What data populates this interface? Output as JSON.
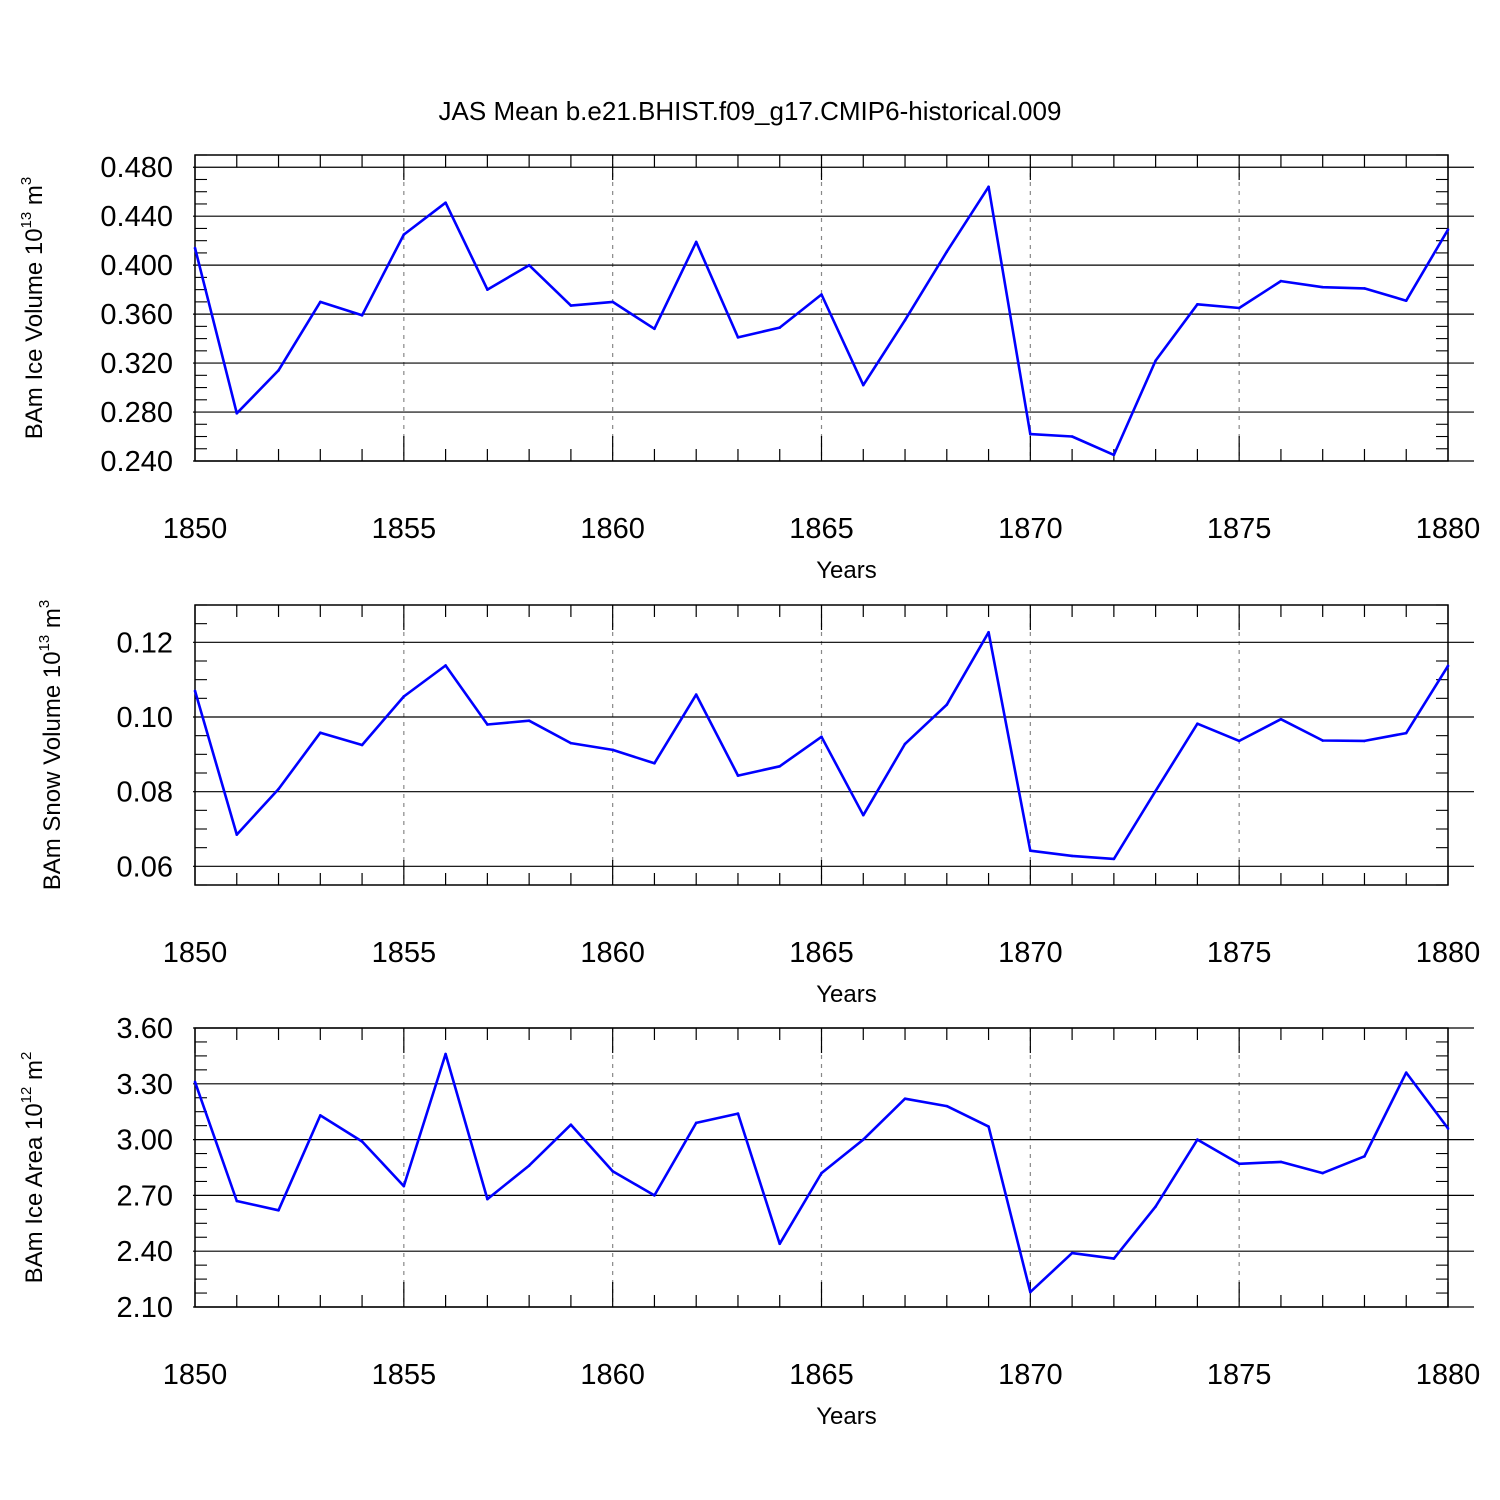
{
  "figure": {
    "title": "JAS Mean b.e21.BHIST.f09_g17.CMIP6-historical.009",
    "line_color": "#0000ff",
    "grid_color": "#888888"
  },
  "chart_data": [
    {
      "type": "line",
      "ylabel": {
        "main": "BAm Ice Volume 10",
        "sup": "13",
        "unit": " m",
        "unit_sup": "3"
      },
      "xlabel": "Years",
      "xlim": [
        1850,
        1880
      ],
      "ylim": [
        0.24,
        0.49
      ],
      "xticks": [
        1850,
        1855,
        1860,
        1865,
        1870,
        1875,
        1880
      ],
      "xtick_labels": [
        "1850",
        "1855",
        "1860",
        "1865",
        "1870",
        "1875",
        "1880"
      ],
      "yticks": [
        0.24,
        0.28,
        0.32,
        0.36,
        0.4,
        0.44,
        0.48
      ],
      "ytick_labels": [
        "0.240",
        "0.280",
        "0.320",
        "0.360",
        "0.400",
        "0.440",
        "0.480"
      ],
      "ygrid": true,
      "xgrid": "dashed",
      "x": [
        1850,
        1851,
        1852,
        1853,
        1854,
        1855,
        1856,
        1857,
        1858,
        1859,
        1860,
        1861,
        1862,
        1863,
        1864,
        1865,
        1866,
        1867,
        1868,
        1869,
        1870,
        1871,
        1872,
        1873,
        1874,
        1875,
        1876,
        1877,
        1878,
        1879,
        1880
      ],
      "y": [
        0.414,
        0.279,
        0.314,
        0.37,
        0.359,
        0.425,
        0.451,
        0.38,
        0.4,
        0.367,
        0.37,
        0.348,
        0.419,
        0.341,
        0.349,
        0.376,
        0.302,
        0.355,
        0.411,
        0.464,
        0.262,
        0.26,
        0.245,
        0.322,
        0.368,
        0.365,
        0.387,
        0.382,
        0.381,
        0.371,
        0.429
      ]
    },
    {
      "type": "line",
      "ylabel": {
        "main": "BAm Snow Volume 10",
        "sup": "13",
        "unit": " m",
        "unit_sup": "3"
      },
      "xlabel": "Years",
      "xlim": [
        1850,
        1880
      ],
      "ylim": [
        0.055,
        0.13
      ],
      "xticks": [
        1850,
        1855,
        1860,
        1865,
        1870,
        1875,
        1880
      ],
      "xtick_labels": [
        "1850",
        "1855",
        "1860",
        "1865",
        "1870",
        "1875",
        "1880"
      ],
      "yticks": [
        0.06,
        0.08,
        0.1,
        0.12
      ],
      "ytick_labels": [
        "0.06",
        "0.08",
        "0.10",
        "0.12"
      ],
      "ygrid": true,
      "xgrid": "dashed",
      "x": [
        1850,
        1851,
        1852,
        1853,
        1854,
        1855,
        1856,
        1857,
        1858,
        1859,
        1860,
        1861,
        1862,
        1863,
        1864,
        1865,
        1866,
        1867,
        1868,
        1869,
        1870,
        1871,
        1872,
        1873,
        1874,
        1875,
        1876,
        1877,
        1878,
        1879,
        1880
      ],
      "y": [
        0.107,
        0.0685,
        0.0807,
        0.0958,
        0.0925,
        0.1055,
        0.1138,
        0.098,
        0.099,
        0.093,
        0.0912,
        0.0876,
        0.106,
        0.0843,
        0.0868,
        0.0947,
        0.0737,
        0.0928,
        0.1033,
        0.1227,
        0.0642,
        0.0628,
        0.062,
        0.0802,
        0.0982,
        0.0936,
        0.0994,
        0.0937,
        0.0936,
        0.0957,
        0.1137
      ]
    },
    {
      "type": "line",
      "ylabel": {
        "main": "BAm Ice Area 10",
        "sup": "12",
        "unit": " m",
        "unit_sup": "2"
      },
      "xlabel": "Years",
      "xlim": [
        1850,
        1880
      ],
      "ylim": [
        2.1,
        3.6
      ],
      "xticks": [
        1850,
        1855,
        1860,
        1865,
        1870,
        1875,
        1880
      ],
      "xtick_labels": [
        "1850",
        "1855",
        "1860",
        "1865",
        "1870",
        "1875",
        "1880"
      ],
      "yticks": [
        2.1,
        2.4,
        2.7,
        3.0,
        3.3,
        3.6
      ],
      "ytick_labels": [
        "2.10",
        "2.40",
        "2.70",
        "3.00",
        "3.30",
        "3.60"
      ],
      "ygrid": true,
      "xgrid": "dashed",
      "x": [
        1850,
        1851,
        1852,
        1853,
        1854,
        1855,
        1856,
        1857,
        1858,
        1859,
        1860,
        1861,
        1862,
        1863,
        1864,
        1865,
        1866,
        1867,
        1868,
        1869,
        1870,
        1871,
        1872,
        1873,
        1874,
        1875,
        1876,
        1877,
        1878,
        1879,
        1880
      ],
      "y": [
        3.31,
        2.67,
        2.62,
        3.13,
        2.99,
        2.75,
        3.46,
        2.68,
        2.86,
        3.08,
        2.83,
        2.7,
        3.09,
        3.14,
        2.44,
        2.82,
        3.0,
        3.22,
        3.18,
        3.07,
        2.18,
        2.39,
        2.36,
        2.64,
        3.0,
        2.87,
        2.88,
        2.82,
        2.91,
        3.36,
        3.06
      ]
    }
  ]
}
